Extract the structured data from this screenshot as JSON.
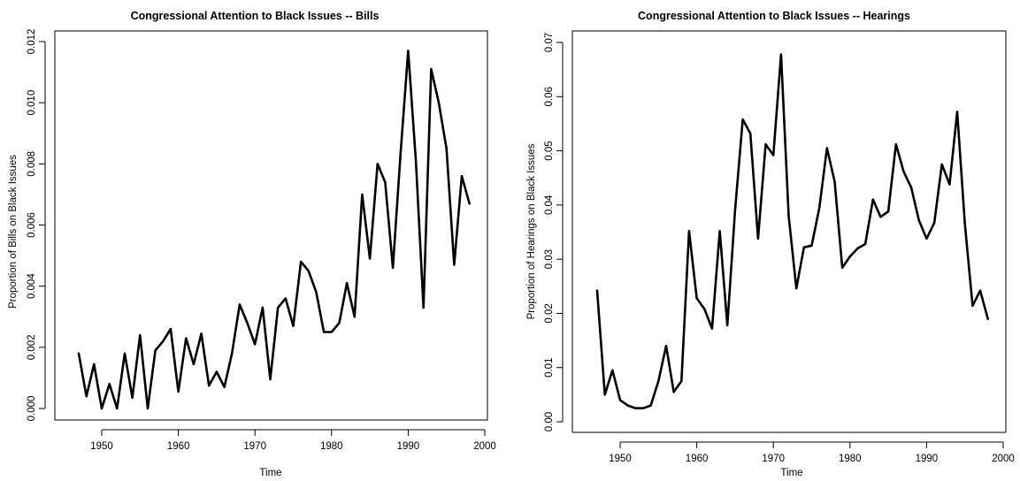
{
  "chart_data": [
    {
      "type": "line",
      "title": "Congressional Attention to Black Issues -- Bills",
      "xlabel": "Time",
      "ylabel": "Proportion of Bills on Black Issues",
      "xlim": [
        1945,
        2000
      ],
      "ylim": [
        0,
        0.012
      ],
      "xticks": [
        "1950",
        "1960",
        "1970",
        "1980",
        "1990",
        "2000"
      ],
      "yticks": [
        "0.000",
        "0.002",
        "0.004",
        "0.006",
        "0.008",
        "0.010",
        "0.012"
      ],
      "grid": false,
      "color": "#000000",
      "series": [
        {
          "x": [
            1947,
            1948,
            1949,
            1950,
            1951,
            1952,
            1953,
            1954,
            1955,
            1956,
            1957,
            1958,
            1959,
            1960,
            1961,
            1962,
            1963,
            1964,
            1965,
            1966,
            1967,
            1968,
            1969,
            1970,
            1971,
            1972,
            1973,
            1974,
            1975,
            1976,
            1977,
            1978,
            1979,
            1980,
            1981,
            1982,
            1983,
            1984,
            1985,
            1986,
            1987,
            1988,
            1989,
            1990,
            1991,
            1992,
            1993,
            1994,
            1995,
            1996,
            1997,
            1998
          ],
          "values": [
            0.0018,
            0.0004,
            0.00145,
            0.0,
            0.0008,
            0.0,
            0.0018,
            0.00035,
            0.0024,
            0.0,
            0.0019,
            0.0022,
            0.0026,
            0.00055,
            0.0023,
            0.00145,
            0.00245,
            0.00075,
            0.0012,
            0.0007,
            0.0018,
            0.0034,
            0.0028,
            0.0021,
            0.0033,
            0.00095,
            0.0033,
            0.0036,
            0.0027,
            0.0048,
            0.0045,
            0.0038,
            0.0025,
            0.0025,
            0.0028,
            0.0041,
            0.003,
            0.007,
            0.0049,
            0.008,
            0.0074,
            0.0046,
            0.0083,
            0.0117,
            0.0081,
            0.0033,
            0.0111,
            0.01,
            0.0085,
            0.0047,
            0.0076,
            0.0067
          ]
        }
      ]
    },
    {
      "type": "line",
      "title": "Congressional Attention to Black Issues -- Hearings",
      "xlabel": "Time",
      "ylabel": "Proportion of Hearings on Black Issues",
      "xlim": [
        1945,
        2000
      ],
      "ylim": [
        0,
        0.07
      ],
      "xticks": [
        "1950",
        "1960",
        "1970",
        "1980",
        "1990",
        "2000"
      ],
      "yticks": [
        "0.00",
        "0.01",
        "0.02",
        "0.03",
        "0.04",
        "0.05",
        "0.06",
        "0.07"
      ],
      "grid": false,
      "color": "#000000",
      "series": [
        {
          "x": [
            1947,
            1948,
            1949,
            1950,
            1951,
            1952,
            1953,
            1954,
            1955,
            1956,
            1957,
            1958,
            1959,
            1960,
            1961,
            1962,
            1963,
            1964,
            1965,
            1966,
            1967,
            1968,
            1969,
            1970,
            1971,
            1972,
            1973,
            1974,
            1975,
            1976,
            1977,
            1978,
            1979,
            1980,
            1981,
            1982,
            1983,
            1984,
            1985,
            1986,
            1987,
            1988,
            1989,
            1990,
            1991,
            1992,
            1993,
            1994,
            1995,
            1996,
            1997,
            1998
          ],
          "values": [
            0.0242,
            0.005,
            0.0095,
            0.004,
            0.003,
            0.0025,
            0.0025,
            0.003,
            0.0075,
            0.014,
            0.0055,
            0.0075,
            0.0352,
            0.0228,
            0.0208,
            0.0172,
            0.0352,
            0.0178,
            0.039,
            0.0558,
            0.0532,
            0.0338,
            0.0512,
            0.0492,
            0.0678,
            0.038,
            0.0246,
            0.0322,
            0.0325,
            0.0395,
            0.0505,
            0.0443,
            0.0284,
            0.0305,
            0.032,
            0.0328,
            0.041,
            0.0378,
            0.0388,
            0.0512,
            0.0462,
            0.0432,
            0.0372,
            0.0338,
            0.0367,
            0.0475,
            0.0438,
            0.0572,
            0.0365,
            0.0214,
            0.0242,
            0.019
          ]
        }
      ]
    }
  ]
}
